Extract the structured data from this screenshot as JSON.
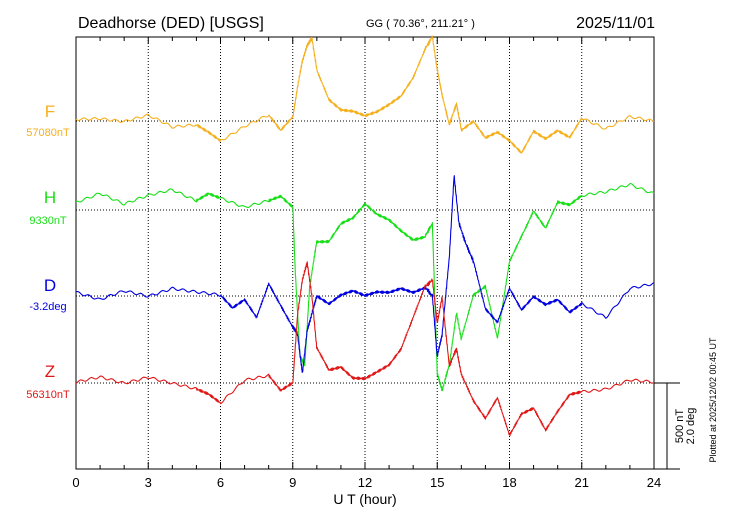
{
  "header": {
    "station": "Deadhorse (DED)  [USGS]",
    "coords": "GG ( 70.36°, 211.21° )",
    "date": "2025/11/01"
  },
  "footer": {
    "plotted": "Plotted at 2025/12/02 00:45 UT"
  },
  "scale_bar": {
    "line1": "500 nT",
    "line2": "2.0 deg"
  },
  "chart_data": {
    "type": "line",
    "title": "Deadhorse (DED)  [USGS]",
    "xlabel": "U T (hour)",
    "xlim": [
      0,
      24
    ],
    "xticks": [
      0,
      3,
      6,
      9,
      12,
      15,
      18,
      21,
      24
    ],
    "x_tick_labels": [
      "0",
      "3",
      "6",
      "9",
      "12",
      "15",
      "18",
      "21",
      "24"
    ],
    "grid": true,
    "series": [
      {
        "name": "F",
        "baseline_label": "57080nT",
        "color": "#f5b01e",
        "unit": "nT",
        "x": [
          0,
          1,
          2,
          3,
          4,
          5,
          5.5,
          6,
          7,
          8,
          8.5,
          9,
          9.2,
          9.4,
          9.6,
          9.8,
          10,
          10.5,
          11,
          11.5,
          12,
          12.5,
          13,
          13.5,
          14,
          14.5,
          14.8,
          15,
          15.2,
          15.5,
          15.8,
          16,
          16.5,
          17,
          17.5,
          18,
          18.5,
          19,
          19.5,
          20,
          20.5,
          21,
          22,
          23,
          24
        ],
        "values": [
          10,
          20,
          0,
          30,
          -40,
          -20,
          -60,
          -110,
          -30,
          30,
          -60,
          20,
          200,
          350,
          440,
          480,
          300,
          130,
          70,
          60,
          30,
          50,
          90,
          140,
          250,
          420,
          490,
          300,
          150,
          -20,
          100,
          -50,
          0,
          -100,
          -70,
          -120,
          -190,
          -60,
          -100,
          -50,
          -90,
          20,
          -50,
          20,
          0
        ]
      },
      {
        "name": "H",
        "baseline_label": "9330nT",
        "color": "#18e018",
        "unit": "nT",
        "x": [
          0,
          1,
          2,
          3,
          4,
          5,
          5.5,
          6,
          7,
          8,
          8.5,
          9,
          9.1,
          9.3,
          9.5,
          9.7,
          10,
          10.5,
          11,
          11.5,
          12,
          12.5,
          13,
          13.5,
          14,
          14.5,
          14.8,
          15,
          15.2,
          15.5,
          15.8,
          16,
          16.5,
          17,
          17.5,
          18,
          18.5,
          19,
          19.5,
          20,
          20.5,
          21,
          22,
          23,
          24
        ],
        "values": [
          50,
          100,
          30,
          80,
          120,
          60,
          100,
          70,
          10,
          50,
          80,
          20,
          -350,
          -850,
          -900,
          -450,
          -180,
          -180,
          -80,
          -50,
          30,
          -30,
          -60,
          -120,
          -170,
          -150,
          -80,
          -950,
          -1050,
          -900,
          -600,
          -750,
          -500,
          -450,
          -750,
          -300,
          -150,
          0,
          -100,
          50,
          30,
          80,
          100,
          150,
          100
        ]
      },
      {
        "name": "D",
        "baseline_label": "-3.2deg",
        "color": "#0000e0",
        "unit": "deg",
        "x": [
          0,
          1,
          2,
          3,
          4,
          5,
          6,
          6.5,
          7,
          7.5,
          8,
          8.5,
          9,
          9.2,
          9.4,
          9.6,
          9.8,
          10,
          10.5,
          11,
          11.5,
          12,
          12.5,
          13,
          13.5,
          14,
          14.5,
          14.8,
          15,
          15.2,
          15.5,
          15.7,
          15.9,
          16.2,
          16.5,
          17,
          17.5,
          18,
          18.5,
          19,
          19.5,
          20,
          20.5,
          21,
          22,
          23,
          24
        ],
        "values": [
          0.1,
          -0.1,
          0.1,
          0.0,
          0.2,
          0.1,
          0.0,
          -0.3,
          -0.1,
          -0.5,
          0.3,
          -0.2,
          -0.7,
          -0.9,
          -1.8,
          -0.8,
          -0.4,
          0.0,
          -0.2,
          0.0,
          0.1,
          0.0,
          0.1,
          0.1,
          0.2,
          0.1,
          0.2,
          0.0,
          -1.4,
          -0.9,
          0.9,
          2.8,
          1.7,
          1.2,
          0.8,
          -0.3,
          -0.6,
          0.2,
          -0.3,
          0.0,
          -0.2,
          -0.1,
          -0.4,
          -0.2,
          -0.5,
          0.2,
          0.3
        ]
      },
      {
        "name": "Z",
        "baseline_label": "56310nT",
        "color": "#e01818",
        "unit": "nT",
        "x": [
          0,
          1,
          2,
          3,
          4,
          5,
          5.5,
          6,
          7,
          8,
          8.5,
          9,
          9.2,
          9.4,
          9.6,
          9.8,
          10,
          10.5,
          11,
          11.5,
          12,
          12.5,
          13,
          13.5,
          14,
          14.5,
          14.8,
          15,
          15.2,
          15.5,
          15.8,
          16,
          16.5,
          17,
          17.5,
          18,
          18.5,
          19,
          19.5,
          20,
          20.5,
          21,
          22,
          23,
          24
        ],
        "values": [
          0,
          30,
          0,
          40,
          0,
          -40,
          -70,
          -120,
          20,
          50,
          -40,
          0,
          400,
          600,
          700,
          500,
          200,
          70,
          90,
          30,
          30,
          70,
          110,
          200,
          380,
          560,
          600,
          350,
          500,
          100,
          200,
          50,
          -100,
          -200,
          -80,
          -300,
          -180,
          -150,
          -280,
          -170,
          -70,
          -50,
          -30,
          20,
          0
        ]
      }
    ]
  }
}
